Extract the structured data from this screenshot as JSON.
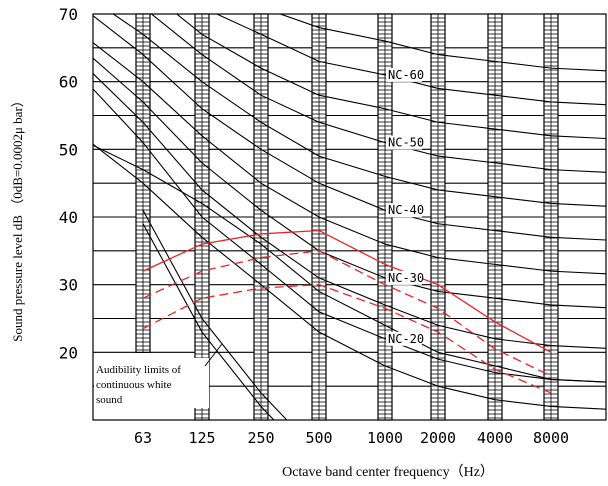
{
  "chart_data": {
    "type": "line",
    "xlabel": "Octave band center frequency（Hz）",
    "ylabel": "Sound pressure level dB （0dB=0.0002μ  bar）",
    "categories": [
      "63",
      "125",
      "250",
      "500",
      "1000",
      "2000",
      "4000",
      "8000"
    ],
    "ylim": [
      10,
      70
    ],
    "yticks": [
      20,
      30,
      40,
      50,
      60,
      70
    ],
    "grid": true,
    "nc_curves": [
      {
        "label": "NC-20",
        "values": [
          51,
          40,
          33,
          26,
          22,
          19,
          17,
          16
        ]
      },
      {
        "label": "NC-30",
        "values": [
          57,
          48,
          41,
          35,
          31,
          29,
          28,
          27
        ]
      },
      {
        "label": "NC-40",
        "values": [
          64,
          56,
          50,
          45,
          41,
          39,
          38,
          37
        ]
      },
      {
        "label": "NC-50",
        "values": [
          71,
          64,
          58,
          54,
          51,
          49,
          48,
          47
        ]
      },
      {
        "label": "NC-60",
        "values": [
          77,
          71,
          67,
          63,
          61,
          59,
          58,
          57
        ]
      }
    ],
    "extra_curves": [
      [
        45,
        37,
        30,
        23,
        18,
        15,
        13,
        12
      ],
      [
        47,
        42,
        36,
        29,
        24,
        20,
        18,
        16
      ],
      [
        54,
        44,
        37,
        31,
        27,
        24,
        22,
        21
      ],
      [
        60,
        52,
        45,
        40,
        36,
        34,
        33,
        32
      ],
      [
        67,
        60,
        54,
        49,
        46,
        44,
        43,
        42
      ],
      [
        74,
        67,
        62,
        58,
        56,
        54,
        53,
        52
      ],
      [
        80,
        75,
        71,
        68,
        66,
        64,
        63,
        62
      ]
    ],
    "audibility_curves": [
      [
        {
          "x": "63",
          "y": 41
        },
        {
          "x": "125",
          "y": 25
        },
        {
          "x": "250",
          "y": 14
        },
        {
          "x": "500",
          "y": 5
        }
      ],
      [
        {
          "x": "63",
          "y": 39
        },
        {
          "x": "125",
          "y": 23
        },
        {
          "x": "250",
          "y": 12
        },
        {
          "x": "500",
          "y": 3
        }
      ]
    ],
    "red_series": [
      {
        "style": "solid",
        "points": [
          {
            "x": "63",
            "y": 32
          },
          {
            "x": "125",
            "y": 36
          },
          {
            "x": "250",
            "y": 37.5
          },
          {
            "x": "500",
            "y": 38
          },
          {
            "x": "1000",
            "y": 33
          },
          {
            "x": "2000",
            "y": 30
          },
          {
            "x": "4000",
            "y": 24.5
          },
          {
            "x": "8000",
            "y": 20
          }
        ]
      },
      {
        "style": "dashed",
        "points": [
          {
            "x": "63",
            "y": 28
          },
          {
            "x": "125",
            "y": 32
          },
          {
            "x": "250",
            "y": 34
          },
          {
            "x": "500",
            "y": 35
          },
          {
            "x": "1000",
            "y": 30
          },
          {
            "x": "2000",
            "y": 26.5
          },
          {
            "x": "4000",
            "y": 20.5
          },
          {
            "x": "8000",
            "y": 16.5
          }
        ]
      },
      {
        "style": "dashed",
        "points": [
          {
            "x": "63",
            "y": 23.5
          },
          {
            "x": "125",
            "y": 28
          },
          {
            "x": "250",
            "y": 29.5
          },
          {
            "x": "500",
            "y": 30
          },
          {
            "x": "1000",
            "y": 26.5
          },
          {
            "x": "2000",
            "y": 23
          },
          {
            "x": "4000",
            "y": 17.5
          },
          {
            "x": "8000",
            "y": 14
          }
        ]
      }
    ],
    "annotation": [
      "Audibility limits of",
      "continuous white",
      "sound"
    ]
  }
}
